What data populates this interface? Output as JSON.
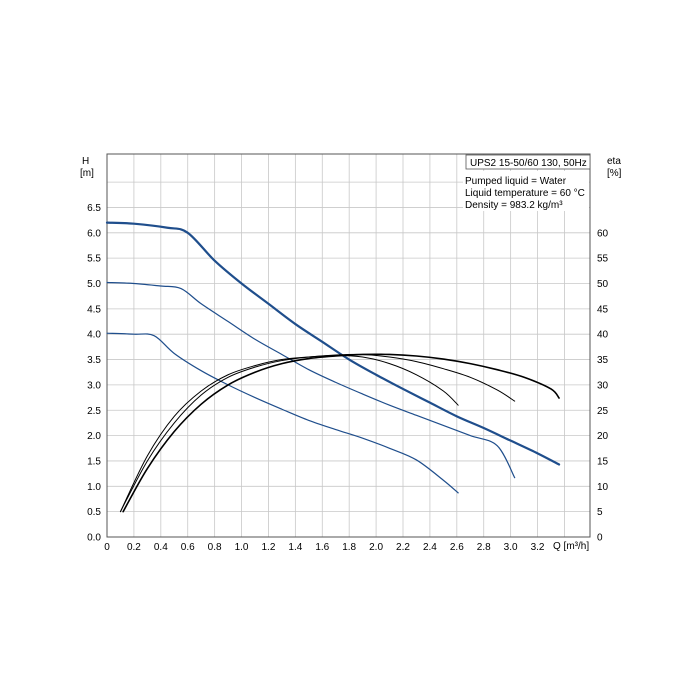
{
  "chart_data": {
    "type": "line",
    "title": "UPS2 15-50/60 130, 50Hz",
    "info_lines": [
      "Pumped liquid = Water",
      "Liquid temperature = 60 °C",
      "Density = 983.2 kg/m³"
    ],
    "y_left_label": [
      "H",
      "[m]"
    ],
    "y_right_label": [
      "eta",
      "[%]"
    ],
    "xlabel": "Q [m³/h]",
    "xlim": [
      0,
      3.6
    ],
    "ylim_left": [
      0,
      7.5
    ],
    "ylim_right": [
      0,
      75
    ],
    "x_ticks": [
      "0",
      "0.2",
      "0.4",
      "0.6",
      "0.8",
      "1.0",
      "1.2",
      "1.4",
      "1.6",
      "1.8",
      "2.0",
      "2.2",
      "2.4",
      "2.6",
      "2.8",
      "3.0",
      "3.2"
    ],
    "y_left_ticks": [
      "0.0",
      "0.5",
      "1.0",
      "1.5",
      "2.0",
      "2.5",
      "3.0",
      "3.5",
      "4.0",
      "4.5",
      "5.0",
      "5.5",
      "6.0",
      "6.5"
    ],
    "y_right_ticks": [
      "0",
      "5",
      "10",
      "15",
      "20",
      "25",
      "30",
      "35",
      "40",
      "45",
      "50",
      "55",
      "60"
    ],
    "grid": true,
    "colors": {
      "head": "#1f4e8c",
      "efficiency": "#000000",
      "grid": "#c8c8c8"
    },
    "series": [
      {
        "kind": "head",
        "axis": "left",
        "width": 2.2,
        "points": [
          [
            0,
            6.2
          ],
          [
            0.2,
            6.18
          ],
          [
            0.45,
            6.1
          ],
          [
            0.6,
            6.0
          ],
          [
            0.8,
            5.45
          ],
          [
            1.0,
            5.0
          ],
          [
            1.2,
            4.6
          ],
          [
            1.4,
            4.2
          ],
          [
            1.6,
            3.85
          ],
          [
            1.8,
            3.5
          ],
          [
            2.0,
            3.2
          ],
          [
            2.2,
            2.92
          ],
          [
            2.4,
            2.65
          ],
          [
            2.6,
            2.38
          ],
          [
            2.8,
            2.15
          ],
          [
            3.0,
            1.9
          ],
          [
            3.2,
            1.65
          ],
          [
            3.36,
            1.43
          ]
        ]
      },
      {
        "kind": "head",
        "axis": "left",
        "width": 1.2,
        "points": [
          [
            0,
            5.02
          ],
          [
            0.2,
            5.0
          ],
          [
            0.4,
            4.95
          ],
          [
            0.55,
            4.9
          ],
          [
            0.7,
            4.6
          ],
          [
            0.9,
            4.25
          ],
          [
            1.1,
            3.9
          ],
          [
            1.3,
            3.6
          ],
          [
            1.5,
            3.3
          ],
          [
            1.7,
            3.05
          ],
          [
            1.9,
            2.82
          ],
          [
            2.1,
            2.6
          ],
          [
            2.3,
            2.4
          ],
          [
            2.5,
            2.2
          ],
          [
            2.7,
            2.0
          ],
          [
            2.9,
            1.8
          ],
          [
            3.03,
            1.17
          ]
        ]
      },
      {
        "kind": "head",
        "axis": "left",
        "width": 1.2,
        "points": [
          [
            0,
            4.02
          ],
          [
            0.2,
            4.0
          ],
          [
            0.35,
            3.97
          ],
          [
            0.5,
            3.62
          ],
          [
            0.7,
            3.28
          ],
          [
            0.9,
            3.0
          ],
          [
            1.1,
            2.75
          ],
          [
            1.3,
            2.52
          ],
          [
            1.5,
            2.3
          ],
          [
            1.7,
            2.12
          ],
          [
            1.9,
            1.95
          ],
          [
            2.1,
            1.75
          ],
          [
            2.3,
            1.52
          ],
          [
            2.5,
            1.12
          ],
          [
            2.61,
            0.87
          ]
        ]
      },
      {
        "kind": "efficiency",
        "axis": "right",
        "width": 1.0,
        "points": [
          [
            0.1,
            5
          ],
          [
            0.3,
            16
          ],
          [
            0.5,
            23.8
          ],
          [
            0.7,
            28.8
          ],
          [
            0.9,
            32
          ],
          [
            1.1,
            33.8
          ],
          [
            1.3,
            35
          ],
          [
            1.5,
            35.5
          ],
          [
            1.7,
            35.8
          ],
          [
            1.9,
            35.5
          ],
          [
            2.1,
            34.2
          ],
          [
            2.3,
            32
          ],
          [
            2.5,
            28.8
          ],
          [
            2.61,
            26
          ]
        ]
      },
      {
        "kind": "efficiency",
        "axis": "right",
        "width": 1.0,
        "points": [
          [
            0.1,
            5
          ],
          [
            0.3,
            15
          ],
          [
            0.5,
            22.5
          ],
          [
            0.7,
            28
          ],
          [
            0.9,
            31.5
          ],
          [
            1.1,
            33.5
          ],
          [
            1.3,
            34.8
          ],
          [
            1.5,
            35.5
          ],
          [
            1.7,
            35.9
          ],
          [
            1.9,
            36
          ],
          [
            2.1,
            35.5
          ],
          [
            2.3,
            34.6
          ],
          [
            2.5,
            33.2
          ],
          [
            2.7,
            31.5
          ],
          [
            2.9,
            29
          ],
          [
            3.03,
            26.8
          ]
        ]
      },
      {
        "kind": "efficiency",
        "axis": "right",
        "width": 1.6,
        "points": [
          [
            0.12,
            5
          ],
          [
            0.3,
            13.5
          ],
          [
            0.5,
            20.8
          ],
          [
            0.7,
            26.2
          ],
          [
            0.9,
            30
          ],
          [
            1.1,
            32.5
          ],
          [
            1.3,
            34.2
          ],
          [
            1.5,
            35.2
          ],
          [
            1.7,
            35.7
          ],
          [
            1.9,
            36
          ],
          [
            2.1,
            36
          ],
          [
            2.3,
            35.7
          ],
          [
            2.5,
            35.1
          ],
          [
            2.7,
            34.2
          ],
          [
            2.9,
            33
          ],
          [
            3.1,
            31.5
          ],
          [
            3.3,
            29.2
          ],
          [
            3.36,
            27.4
          ]
        ]
      }
    ]
  }
}
